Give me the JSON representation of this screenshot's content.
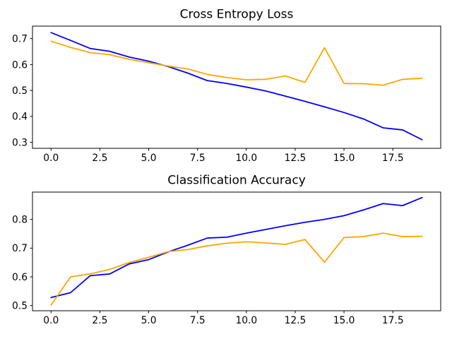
{
  "figure": {
    "background": "#ffffff"
  },
  "chart_data": [
    {
      "type": "line",
      "title": "Cross Entropy Loss",
      "x": [
        0,
        1,
        2,
        3,
        4,
        5,
        6,
        7,
        8,
        9,
        10,
        11,
        12,
        13,
        14,
        15,
        16,
        17,
        18,
        19
      ],
      "series": [
        {
          "name": "blue",
          "color": "#0000ff",
          "values": [
            0.723,
            0.693,
            0.662,
            0.651,
            0.629,
            0.613,
            0.592,
            0.567,
            0.538,
            0.527,
            0.513,
            0.498,
            0.478,
            0.458,
            0.437,
            0.415,
            0.39,
            0.356,
            0.348,
            0.31
          ]
        },
        {
          "name": "orange",
          "color": "#ffa500",
          "values": [
            0.69,
            0.666,
            0.646,
            0.638,
            0.62,
            0.607,
            0.594,
            0.583,
            0.562,
            0.55,
            0.541,
            0.543,
            0.556,
            0.531,
            0.665,
            0.527,
            0.526,
            0.52,
            0.543,
            0.547
          ]
        }
      ],
      "xticks": [
        0.0,
        2.5,
        5.0,
        7.5,
        10.0,
        12.5,
        15.0,
        17.5
      ],
      "yticks": [
        0.3,
        0.4,
        0.5,
        0.6,
        0.7
      ],
      "xlim": [
        -0.95,
        19.95
      ],
      "ylim": [
        0.277,
        0.748
      ],
      "grid": false,
      "legend": "none"
    },
    {
      "type": "line",
      "title": "Classification Accuracy",
      "x": [
        0,
        1,
        2,
        3,
        4,
        5,
        6,
        7,
        8,
        9,
        10,
        11,
        12,
        13,
        14,
        15,
        16,
        17,
        18,
        19
      ],
      "series": [
        {
          "name": "blue",
          "color": "#0000ff",
          "values": [
            0.528,
            0.545,
            0.604,
            0.61,
            0.645,
            0.66,
            0.687,
            0.71,
            0.735,
            0.738,
            0.752,
            0.765,
            0.778,
            0.79,
            0.8,
            0.813,
            0.833,
            0.855,
            0.848,
            0.876
          ]
        },
        {
          "name": "orange",
          "color": "#ffa500",
          "values": [
            0.502,
            0.6,
            0.61,
            0.626,
            0.65,
            0.668,
            0.688,
            0.695,
            0.708,
            0.717,
            0.722,
            0.718,
            0.713,
            0.73,
            0.651,
            0.737,
            0.74,
            0.752,
            0.74,
            0.741
          ]
        }
      ],
      "xticks": [
        0.0,
        2.5,
        5.0,
        7.5,
        10.0,
        12.5,
        15.0,
        17.5
      ],
      "yticks": [
        0.5,
        0.6,
        0.7,
        0.8
      ],
      "xlim": [
        -0.95,
        19.95
      ],
      "ylim": [
        0.482,
        0.895
      ],
      "grid": false,
      "legend": "none"
    }
  ]
}
